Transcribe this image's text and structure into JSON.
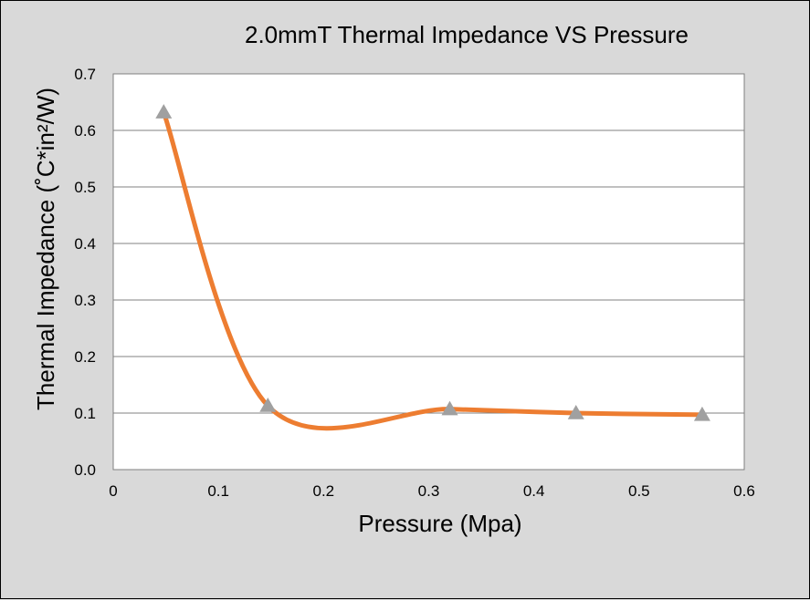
{
  "chart_data": {
    "type": "scatter",
    "title": "2.0mmT Thermal Impedance VS Pressure",
    "xlabel": "Pressure (Mpa)",
    "ylabel": "Thermal Impedance (˚C*in²/W)",
    "xlim": [
      0,
      0.6
    ],
    "ylim": [
      0,
      0.7
    ],
    "x_ticks": [
      "0",
      "0.1",
      "0.2",
      "0.3",
      "0.4",
      "0.5",
      "0.6"
    ],
    "y_ticks": [
      "0.0",
      "0.1",
      "0.2",
      "0.3",
      "0.4",
      "0.5",
      "0.6",
      "0.7"
    ],
    "grid": "horizontal",
    "series": [
      {
        "x": [
          0.048,
          0.147,
          0.32,
          0.44,
          0.56
        ],
        "values": [
          0.632,
          0.113,
          0.107,
          0.1,
          0.097
        ],
        "marker": "triangle",
        "marker_color": "#a0a0a0",
        "line_color": "#ed7d31",
        "smoothed": true
      }
    ]
  }
}
